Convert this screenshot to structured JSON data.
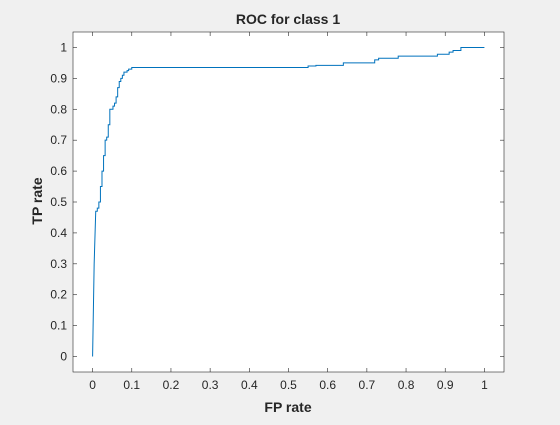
{
  "chart_data": {
    "type": "line",
    "title": "ROC for class 1",
    "xlabel": "FP rate",
    "ylabel": "TP rate",
    "xlim": [
      -0.05,
      1.05
    ],
    "ylim": [
      -0.05,
      1.05
    ],
    "x_ticks": [
      "0",
      "0.1",
      "0.2",
      "0.3",
      "0.4",
      "0.5",
      "0.6",
      "0.7",
      "0.8",
      "0.9",
      "1"
    ],
    "y_ticks": [
      "0",
      "0.1",
      "0.2",
      "0.3",
      "0.4",
      "0.5",
      "0.6",
      "0.7",
      "0.8",
      "0.9",
      "1"
    ],
    "grid": false,
    "line_color": "#0072bd",
    "series": [
      {
        "x": [
          0,
          0.004,
          0.008,
          0.008,
          0.012,
          0.012,
          0.016,
          0.016,
          0.02,
          0.02,
          0.024,
          0.024,
          0.028,
          0.028,
          0.032,
          0.032,
          0.036,
          0.036,
          0.04,
          0.04,
          0.044,
          0.044,
          0.048,
          0.048,
          0.052,
          0.052,
          0.056,
          0.056,
          0.06,
          0.06,
          0.064,
          0.064,
          0.068,
          0.068,
          0.072,
          0.072,
          0.076,
          0.076,
          0.08,
          0.08,
          0.084,
          0.084,
          0.088,
          0.088,
          0.092,
          0.092,
          0.096,
          0.096,
          0.1,
          0.1,
          0.104,
          0.104,
          0.11,
          0.11,
          0.2,
          0.3,
          0.4,
          0.5,
          0.55,
          0.55,
          0.57,
          0.57,
          0.64,
          0.64,
          0.72,
          0.72,
          0.73,
          0.73,
          0.78,
          0.78,
          0.88,
          0.88,
          0.91,
          0.91,
          0.92,
          0.92,
          0.94,
          0.94,
          1.0
        ],
        "y": [
          0,
          0.3,
          0.47,
          0.47,
          0.47,
          0.48,
          0.48,
          0.5,
          0.5,
          0.55,
          0.55,
          0.6,
          0.6,
          0.65,
          0.65,
          0.7,
          0.7,
          0.71,
          0.71,
          0.75,
          0.75,
          0.8,
          0.8,
          0.8,
          0.8,
          0.81,
          0.81,
          0.82,
          0.82,
          0.84,
          0.84,
          0.87,
          0.87,
          0.89,
          0.89,
          0.9,
          0.9,
          0.91,
          0.91,
          0.92,
          0.92,
          0.92,
          0.92,
          0.925,
          0.925,
          0.93,
          0.93,
          0.93,
          0.93,
          0.935,
          0.935,
          0.935,
          0.935,
          0.935,
          0.935,
          0.935,
          0.935,
          0.935,
          0.935,
          0.94,
          0.94,
          0.942,
          0.942,
          0.95,
          0.95,
          0.96,
          0.96,
          0.965,
          0.965,
          0.972,
          0.972,
          0.978,
          0.978,
          0.985,
          0.985,
          0.99,
          0.99,
          1.0,
          1.0
        ]
      }
    ]
  }
}
